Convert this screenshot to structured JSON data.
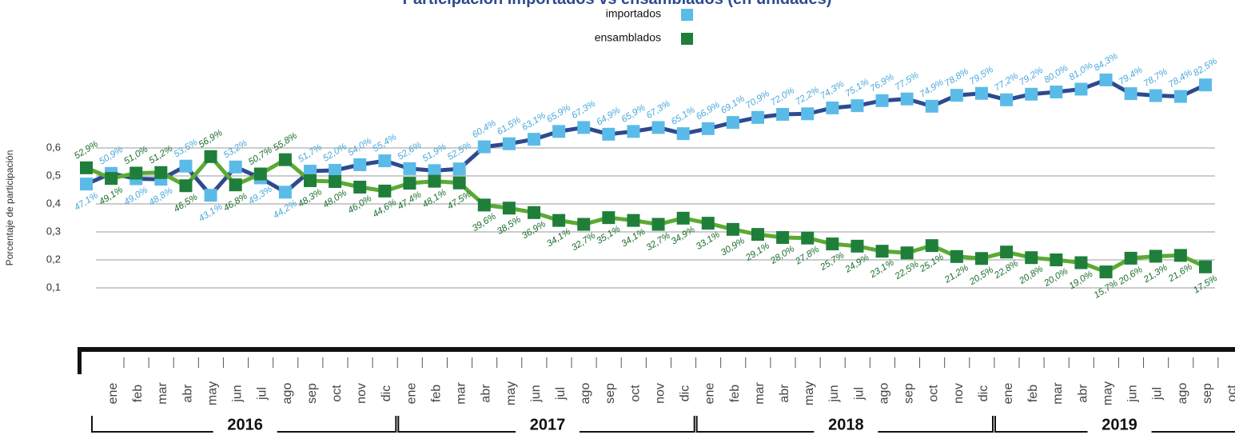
{
  "chart_data": {
    "type": "line",
    "title": "Participación importados vs ensamblados (en unidades)",
    "y_label": "Porcentaje de participación",
    "categories": [
      "ene",
      "feb",
      "mar",
      "abr",
      "may",
      "jun",
      "jul",
      "ago",
      "sep",
      "oct",
      "nov",
      "dic",
      "ene",
      "feb",
      "mar",
      "abr",
      "may",
      "jun",
      "jul",
      "ago",
      "sep",
      "oct",
      "nov",
      "dic",
      "ene",
      "feb",
      "mar",
      "abr",
      "may",
      "jun",
      "jul",
      "ago",
      "sep",
      "oct",
      "nov",
      "dic",
      "ene",
      "feb",
      "mar",
      "abr",
      "may",
      "jun",
      "jul",
      "ago",
      "sep",
      "oct"
    ],
    "years": [
      "2016",
      "2017",
      "2018",
      "2019"
    ],
    "ylim": [
      0.1,
      0.9
    ],
    "yticks": [
      {
        "value": 0.1,
        "label": "0,1"
      },
      {
        "value": 0.2,
        "label": "0,2"
      },
      {
        "value": 0.3,
        "label": "0,3"
      },
      {
        "value": 0.4,
        "label": "0,4"
      },
      {
        "value": 0.5,
        "label": "0,5"
      },
      {
        "value": 0.6,
        "label": "0,6"
      }
    ],
    "grid": true,
    "series": [
      {
        "name": "importados",
        "color": "#5bbbe8",
        "line_color": "#2e4a8f",
        "label_color": "#4aa8dc",
        "values": [
          0.471,
          0.509,
          0.49,
          0.488,
          0.535,
          0.431,
          0.532,
          0.493,
          0.442,
          0.517,
          0.52,
          0.54,
          0.554,
          0.526,
          0.519,
          0.525,
          0.604,
          0.615,
          0.631,
          0.659,
          0.673,
          0.649,
          0.659,
          0.673,
          0.651,
          0.669,
          0.691,
          0.709,
          0.72,
          0.722,
          0.743,
          0.751,
          0.769,
          0.775,
          0.749,
          0.788,
          0.795,
          0.772,
          0.792,
          0.8,
          0.81,
          0.843,
          0.794,
          0.787,
          0.784,
          0.825
        ],
        "value_labels": [
          "47,1%",
          "50,9%",
          "49,0%",
          "48,8%",
          "53,5%",
          "43,1%",
          "53,2%",
          "49,3%",
          "44,2%",
          "51,7%",
          "52,0%",
          "54,0%",
          "55,4%",
          "52,6%",
          "51,9%",
          "52,5%",
          "60,4%",
          "61,5%",
          "63,1%",
          "65,9%",
          "67,3%",
          "64,9%",
          "65,9%",
          "67,3%",
          "65,1%",
          "66,9%",
          "69,1%",
          "70,9%",
          "72,0%",
          "72,2%",
          "74,3%",
          "75,1%",
          "76,9%",
          "77,5%",
          "74,9%",
          "78,8%",
          "79,5%",
          "77,2%",
          "79,2%",
          "80,0%",
          "81,0%",
          "84,3%",
          "79,4%",
          "78,7%",
          "78,4%",
          "82,5%"
        ]
      },
      {
        "name": "ensamblados",
        "color": "#1f7f3a",
        "line_color": "#5aab32",
        "label_color": "#1b6e2e",
        "values": [
          0.529,
          0.491,
          0.51,
          0.512,
          0.465,
          0.569,
          0.468,
          0.507,
          0.558,
          0.483,
          0.48,
          0.46,
          0.446,
          0.474,
          0.481,
          0.475,
          0.396,
          0.385,
          0.369,
          0.341,
          0.327,
          0.351,
          0.341,
          0.327,
          0.349,
          0.331,
          0.309,
          0.291,
          0.28,
          0.278,
          0.257,
          0.249,
          0.231,
          0.225,
          0.251,
          0.212,
          0.205,
          0.228,
          0.208,
          0.2,
          0.19,
          0.157,
          0.206,
          0.213,
          0.216,
          0.175
        ],
        "value_labels": [
          "52,9%",
          "49,1%",
          "51,0%",
          "51,2%",
          "46,5%",
          "56,9%",
          "46,8%",
          "50,7%",
          "55,8%",
          "48,3%",
          "48,0%",
          "46,0%",
          "44,6%",
          "47,4%",
          "48,1%",
          "47,5%",
          "39,6%",
          "38,5%",
          "36,9%",
          "34,1%",
          "32,7%",
          "35,1%",
          "34,1%",
          "32,7%",
          "34,9%",
          "33,1%",
          "30,9%",
          "29,1%",
          "28,0%",
          "27,8%",
          "25,7%",
          "24,9%",
          "23,1%",
          "22,5%",
          "25,1%",
          "21,2%",
          "20,5%",
          "22,8%",
          "20,8%",
          "20,0%",
          "19,0%",
          "15,7%",
          "20,6%",
          "21,3%",
          "21,6%",
          "17,5%"
        ]
      }
    ]
  }
}
